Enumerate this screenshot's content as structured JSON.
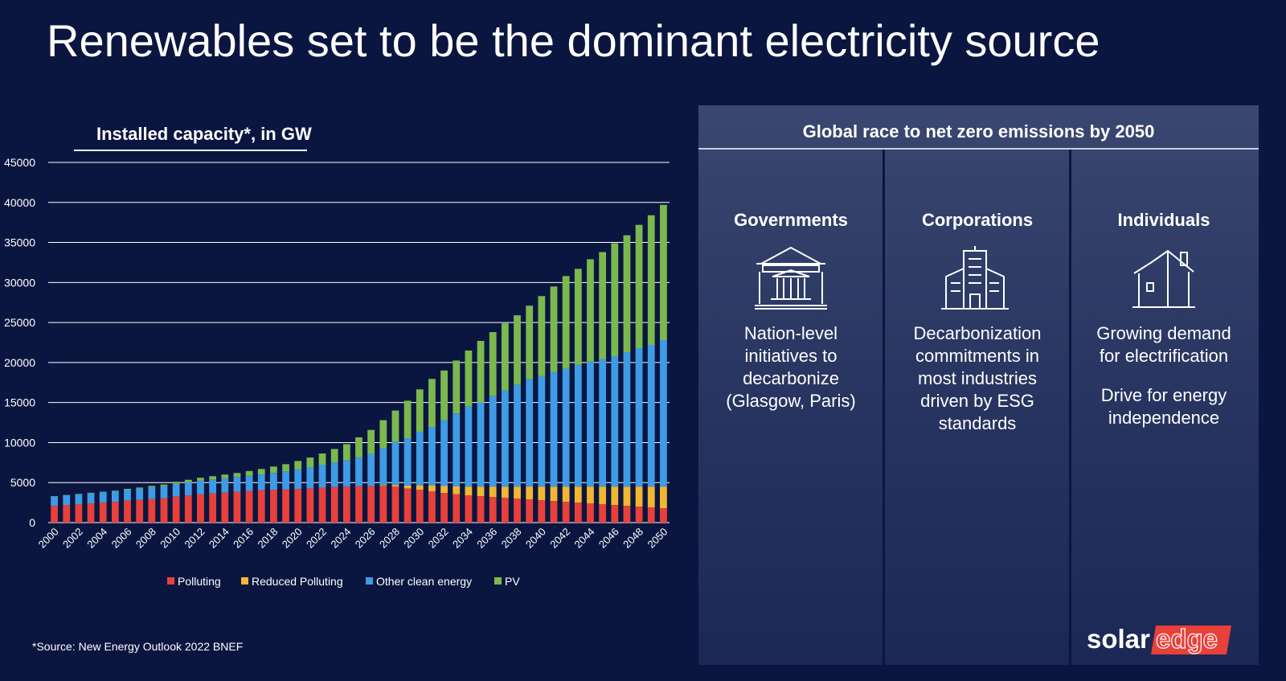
{
  "slide": {
    "title": "Renewables set to be the dominant electricity source",
    "source": "*Source: New Energy Outlook 2022 BNEF",
    "logo_text": "solaredge"
  },
  "panel": {
    "title": "Global race to net zero emissions by 2050",
    "columns": [
      {
        "title": "Governments",
        "icon": "government-building-icon",
        "text": "Nation-level initiatives to decarbonize (Glasgow, Paris)",
        "text2": ""
      },
      {
        "title": "Corporations",
        "icon": "office-buildings-icon",
        "text": "Decarbonization commitments in most industries driven by ESG standards",
        "text2": ""
      },
      {
        "title": "Individuals",
        "icon": "house-icon",
        "text": "Growing demand for electrification",
        "text2": "Drive for energy independence"
      }
    ]
  },
  "chart_data": {
    "type": "bar",
    "stacked": true,
    "title": "Installed capacity*, in GW",
    "ylim": [
      0,
      45000
    ],
    "yticks": [
      0,
      5000,
      10000,
      15000,
      20000,
      25000,
      30000,
      35000,
      40000,
      45000
    ],
    "grid": true,
    "legend_position": "bottom",
    "categories": [
      2000,
      2001,
      2002,
      2003,
      2004,
      2005,
      2006,
      2007,
      2008,
      2009,
      2010,
      2011,
      2012,
      2013,
      2014,
      2015,
      2016,
      2017,
      2018,
      2019,
      2020,
      2021,
      2022,
      2023,
      2024,
      2025,
      2026,
      2027,
      2028,
      2029,
      2030,
      2031,
      2032,
      2033,
      2034,
      2035,
      2036,
      2037,
      2038,
      2039,
      2040,
      2041,
      2042,
      2043,
      2044,
      2045,
      2046,
      2047,
      2048,
      2049,
      2050
    ],
    "xticks": [
      "2000",
      "2002",
      "2004",
      "2006",
      "2008",
      "2010",
      "2012",
      "2014",
      "2016",
      "2018",
      "2020",
      "2022",
      "2024",
      "2026",
      "2028",
      "2030",
      "2032",
      "2034",
      "2036",
      "2038",
      "2040",
      "2042",
      "2044",
      "2046",
      "2048",
      "2050"
    ],
    "colors": {
      "Polluting": "#e8403a",
      "Reduced Polluting": "#f2b632",
      "Other clean energy": "#3e9be6",
      "PV": "#7bb84e"
    },
    "series": [
      {
        "name": "Polluting",
        "values": [
          2100,
          2200,
          2300,
          2400,
          2500,
          2600,
          2750,
          2850,
          2950,
          3050,
          3250,
          3400,
          3550,
          3650,
          3750,
          3850,
          3950,
          4050,
          4100,
          4150,
          4200,
          4280,
          4380,
          4450,
          4500,
          4550,
          4580,
          4600,
          4500,
          4280,
          4100,
          3900,
          3700,
          3550,
          3400,
          3300,
          3200,
          3100,
          3000,
          2900,
          2800,
          2700,
          2600,
          2500,
          2400,
          2300,
          2200,
          2100,
          2000,
          1900,
          1800
        ]
      },
      {
        "name": "Reduced Polluting",
        "values": [
          0,
          0,
          0,
          0,
          0,
          0,
          0,
          0,
          0,
          0,
          0,
          0,
          0,
          0,
          0,
          0,
          0,
          0,
          0,
          0,
          0,
          0,
          0,
          0,
          0,
          0,
          0,
          100,
          200,
          350,
          550,
          750,
          900,
          1000,
          1100,
          1200,
          1300,
          1400,
          1500,
          1600,
          1700,
          1800,
          1900,
          2000,
          2100,
          2200,
          2300,
          2400,
          2500,
          2600,
          2700
        ]
      },
      {
        "name": "Other clean energy",
        "values": [
          1200,
          1220,
          1250,
          1280,
          1300,
          1330,
          1370,
          1400,
          1450,
          1500,
          1600,
          1650,
          1700,
          1750,
          1800,
          1850,
          1900,
          1950,
          2100,
          2250,
          2450,
          2650,
          2850,
          3050,
          3300,
          3600,
          4000,
          4600,
          5400,
          5900,
          6700,
          7300,
          8200,
          9100,
          10000,
          10500,
          11300,
          12000,
          12700,
          13400,
          13800,
          14300,
          14700,
          15200,
          15600,
          15900,
          16300,
          16800,
          17300,
          17700,
          18300
        ]
      },
      {
        "name": "PV",
        "values": [
          20,
          30,
          40,
          50,
          60,
          70,
          100,
          130,
          180,
          200,
          250,
          300,
          350,
          400,
          450,
          500,
          600,
          700,
          800,
          900,
          1050,
          1200,
          1400,
          1700,
          2000,
          2500,
          3000,
          3500,
          3900,
          4700,
          5300,
          6000,
          6200,
          6600,
          7000,
          7700,
          8000,
          8400,
          8700,
          9200,
          10000,
          10700,
          11600,
          12000,
          12800,
          13400,
          14100,
          14600,
          15400,
          16200,
          16900
        ]
      }
    ]
  }
}
